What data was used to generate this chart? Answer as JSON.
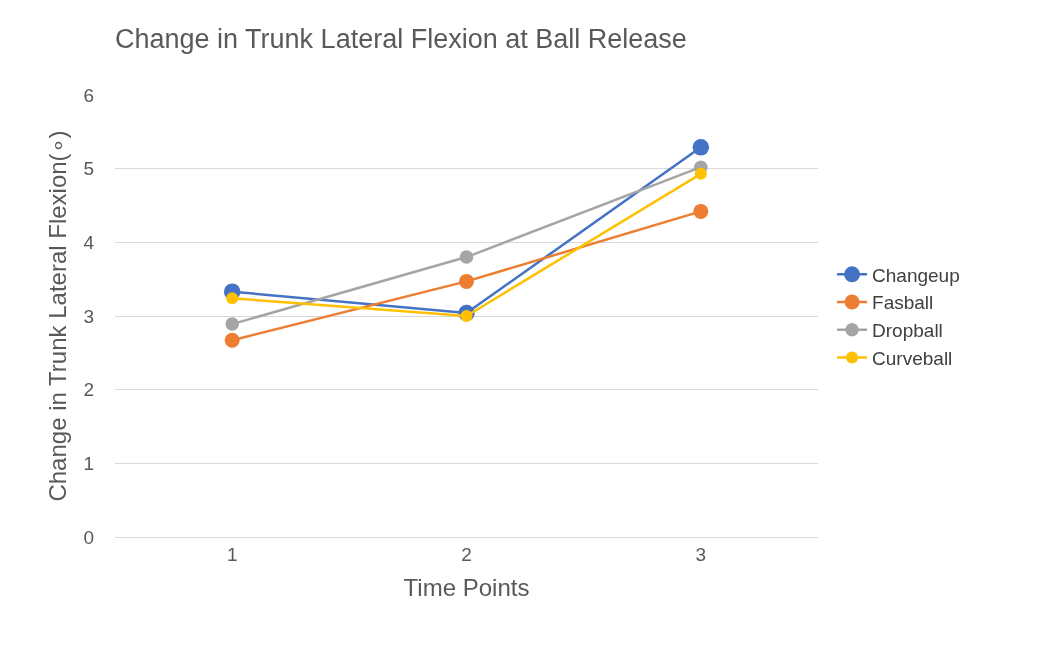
{
  "chart_data": {
    "type": "line",
    "title": "Change in Trunk Lateral Flexion at Ball Release",
    "xlabel": "Time Points",
    "ylabel": "Change in Trunk Lateral Flexion(∘)",
    "categories": [
      "1",
      "2",
      "3"
    ],
    "series": [
      {
        "name": "Changeup",
        "color": "#4472c4",
        "values": [
          3.33,
          3.04,
          5.29
        ]
      },
      {
        "name": "Fasball",
        "color": "#ed7d31",
        "values": [
          2.67,
          3.47,
          4.42
        ]
      },
      {
        "name": "Dropball",
        "color": "#a5a5a5",
        "values": [
          2.89,
          3.8,
          5.02
        ]
      },
      {
        "name": "Curveball",
        "color": "#ffc000",
        "values": [
          3.24,
          3.0,
          4.93
        ]
      }
    ],
    "ylim": [
      0,
      6
    ],
    "yticks": [
      0,
      1,
      2,
      3,
      4,
      5,
      6
    ],
    "grid": "y",
    "legend": "right",
    "marker": "circle",
    "line_style": "solid"
  }
}
